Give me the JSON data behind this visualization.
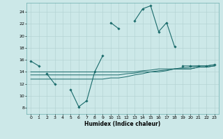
{
  "xlabel": "Humidex (Indice chaleur)",
  "background_color": "#cce8e8",
  "line_color": "#1a6b6b",
  "xlim": [
    -0.5,
    23.5
  ],
  "ylim": [
    7,
    25.5
  ],
  "yticks": [
    8,
    10,
    12,
    14,
    16,
    18,
    20,
    22,
    24
  ],
  "xticks": [
    0,
    1,
    2,
    3,
    4,
    5,
    6,
    7,
    8,
    9,
    10,
    11,
    12,
    13,
    14,
    15,
    16,
    17,
    18,
    19,
    20,
    21,
    22,
    23
  ],
  "series_main": [
    15.8,
    15.0,
    null,
    null,
    null,
    null,
    null,
    null,
    null,
    null,
    22.2,
    21.2,
    null,
    22.5,
    24.5,
    25.0,
    20.7,
    22.2,
    18.2,
    null,
    null,
    null,
    null,
    null
  ],
  "series_zigzag": [
    null,
    null,
    13.7,
    12.0,
    null,
    11.0,
    8.2,
    9.2,
    14.0,
    16.7,
    null,
    null,
    null,
    null,
    null,
    null,
    null,
    null,
    null,
    null,
    null,
    null,
    null,
    null
  ],
  "series_flat1": [
    14.0,
    14.0,
    14.0,
    14.0,
    14.0,
    14.0,
    14.0,
    14.0,
    14.0,
    14.0,
    14.0,
    14.0,
    14.0,
    14.0,
    14.2,
    14.3,
    14.5,
    14.5,
    14.5,
    14.7,
    14.8,
    15.0,
    15.0,
    15.2
  ],
  "series_flat2": [
    13.5,
    13.5,
    13.5,
    13.5,
    13.5,
    13.5,
    13.5,
    13.5,
    13.5,
    13.5,
    13.5,
    13.5,
    13.7,
    13.8,
    14.0,
    14.0,
    14.2,
    14.3,
    14.5,
    14.5,
    14.5,
    14.8,
    14.8,
    15.0
  ],
  "series_flat3": [
    12.8,
    12.8,
    12.8,
    12.8,
    12.8,
    12.8,
    12.8,
    12.8,
    12.8,
    12.8,
    13.0,
    13.0,
    13.2,
    13.5,
    13.7,
    14.0,
    14.0,
    14.2,
    14.5,
    14.5,
    14.5,
    14.8,
    14.8,
    15.0
  ],
  "series_right": [
    null,
    null,
    null,
    null,
    null,
    null,
    null,
    null,
    null,
    null,
    null,
    null,
    null,
    null,
    null,
    null,
    null,
    null,
    null,
    15.0,
    15.0,
    15.0,
    15.0,
    15.2
  ]
}
